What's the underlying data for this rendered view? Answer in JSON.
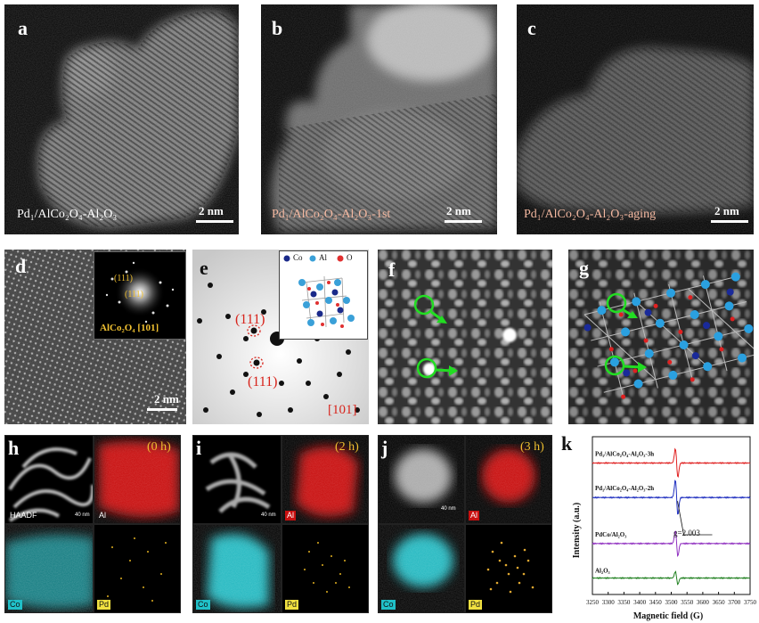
{
  "panels": {
    "a": {
      "label": "a",
      "caption": "Pd₁/AlCo₂O₄-Al₂O₃",
      "scale": "2 nm"
    },
    "b": {
      "label": "b",
      "caption": "Pd₁/AlCo₂O₄-Al₂O₃-1st",
      "scale": "2 nm"
    },
    "c": {
      "label": "c",
      "caption": "Pd₁/AlCo₂O₄-Al₂O₃-aging",
      "scale": "2 nm"
    },
    "d": {
      "label": "d",
      "scale": "2 nm",
      "fft_spot1": "(111)",
      "fft_spot2": "(111)",
      "zone": "AlCo₂O₄ [101]"
    },
    "e": {
      "label": "e",
      "spot_upper": "(111)",
      "spot_lower": "(111)",
      "zone": "[101]",
      "legend": [
        "Co",
        "Al",
        "O"
      ]
    },
    "f": {
      "label": "f"
    },
    "g": {
      "label": "g"
    },
    "h": {
      "label": "h",
      "time": "(0 h)",
      "tags": [
        "HAADF",
        "Al",
        "Co",
        "Pd"
      ],
      "scale": "40 nm"
    },
    "i": {
      "label": "i",
      "time": "(2 h)",
      "tags": [
        "Al",
        "Co",
        "Pd"
      ],
      "scale": "40 nm"
    },
    "j": {
      "label": "j",
      "time": "(3 h)",
      "tags": [
        "Al",
        "Co",
        "Pd"
      ],
      "scale": "40 nm"
    },
    "k": {
      "label": "k"
    }
  },
  "colors": {
    "caption_a": "#ffffff",
    "caption_bc": "#f4b8a0",
    "fft_label": "#f0c030",
    "spot_label": "#d8241c",
    "al_map": "#d81010",
    "co_map": "#20c0c8",
    "pd_map": "#f0c030"
  },
  "chart_data": {
    "type": "line",
    "xlabel": "Magnetic field (G)",
    "ylabel": "Intensity (a.u.)",
    "xlim": [
      3250,
      3750
    ],
    "xticks": [
      3250,
      3300,
      3350,
      3400,
      3450,
      3500,
      3550,
      3600,
      3650,
      3700,
      3750
    ],
    "xtick_labels": [
      "3250",
      "3300",
      "3350",
      "3400",
      "3450",
      "3500",
      "3550",
      "3600",
      "3650",
      "3700",
      "3750"
    ],
    "annotation": "g=2.003",
    "annotation_x": 3517,
    "series": [
      {
        "name": "Pd₁/AlCo₂O₄-Al₂O₃-3h",
        "color": "#e02020",
        "baseline": 4,
        "amplitude": 0.45,
        "center": 3517
      },
      {
        "name": "Pd₁/AlCo₂O₄-Al₂O₃-2h",
        "color": "#2030c0",
        "baseline": 2.95,
        "amplitude": 0.55,
        "center": 3517
      },
      {
        "name": "PdCo/Al₂O₃",
        "color": "#9030c0",
        "baseline": 1.55,
        "amplitude": 0.4,
        "center": 3517
      },
      {
        "name": "Al₂O₃",
        "color": "#208020",
        "baseline": 0.5,
        "amplitude": 0.2,
        "center": 3517
      }
    ]
  }
}
